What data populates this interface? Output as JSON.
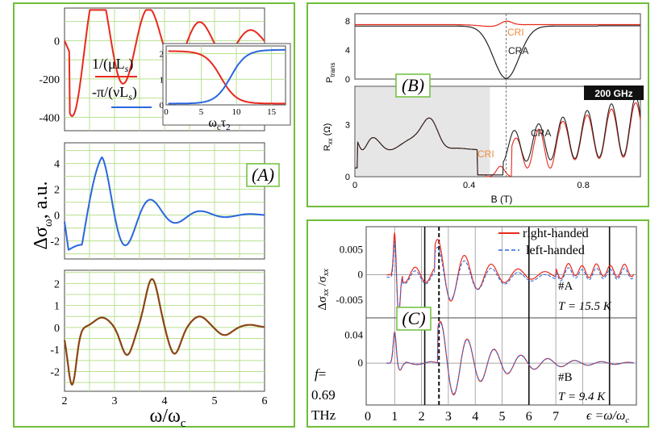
{
  "figure": {
    "accent_color": "#6fbf3a",
    "red": "#e8291c",
    "blue": "#2a66e0",
    "brown": "#8a4513",
    "black": "#222222"
  },
  "panel_a": {
    "label": "(A)",
    "ylabel": "Δσ",
    "ylabel_sub": "ω",
    "ylabel_suffix": ", a.u.",
    "xlabel": "ω/ω",
    "xlabel_sub": "c",
    "legend": [
      {
        "text": "1/(μL",
        "sub": "s",
        "close": ")",
        "color": "#e8291c"
      },
      {
        "text": "-π/(νL",
        "sub": "s",
        "close": ")",
        "color": "#2a66e0"
      }
    ],
    "inset_xlabel": "ω",
    "inset_xlabel_sub": "c",
    "inset_xlabel_tau": "τ",
    "inset_xlabel_tau_sub": "2"
  },
  "panel_b": {
    "label": "(B)",
    "badge": "200 GHz",
    "top_ylabel": "P",
    "top_ylabel_sub": "trans",
    "bottom_ylabel": "R",
    "bottom_ylabel_sub": "xx",
    "bottom_ylabel_unit": " (Ω)",
    "xlabel": "B (T)",
    "cri_label": "CRI",
    "cra_label": "CRA",
    "cri_label_2": "CRI",
    "cra_label_2": "CRA"
  },
  "panel_c": {
    "label": "(C)",
    "ylabel": "Δσ",
    "ylabel_sub": "xx",
    "ylabel_mid": " /σ",
    "ylabel_sub2": "xx",
    "legend": [
      "right-handed",
      "left-handed"
    ],
    "sample_a": "#A",
    "temp_a": "T = 15.5 K",
    "sample_b": "#B",
    "temp_b": "T = 9.4 K",
    "freq_line1": "f =",
    "freq_line2": "0.69",
    "freq_line3": "THz",
    "xlabel": "ϵ =ω/ω",
    "xlabel_sub": "c"
  },
  "chart_data": [
    {
      "id": "A-top",
      "type": "line",
      "x": [
        2,
        6
      ],
      "y_range": [
        -470,
        170
      ],
      "yticks": [
        0,
        -200,
        -400
      ],
      "yticks_labels": [
        "0",
        "-200",
        "-400"
      ],
      "series": [
        {
          "name": "red oscillation",
          "color": "#e8291c"
        }
      ]
    },
    {
      "id": "A-inset",
      "type": "line",
      "x_range": [
        0,
        17
      ],
      "y_range": [
        0,
        2.3
      ],
      "xticks": [
        0,
        5,
        10,
        15
      ],
      "xticks_labels": [
        "0",
        "5",
        "10",
        "15"
      ],
      "yticks": [
        0,
        1,
        2
      ],
      "yticks_labels": [
        "0",
        "1",
        "2"
      ],
      "series": [
        {
          "name": "1/(μLs)",
          "color": "#e8291c"
        },
        {
          "name": "-π/(νLs)",
          "color": "#2a66e0"
        }
      ]
    },
    {
      "id": "A-mid",
      "type": "line",
      "x_range": [
        2,
        6
      ],
      "y_range": [
        -3.4,
        5.6
      ],
      "yticks": [
        4,
        2,
        0,
        -2
      ],
      "yticks_labels": [
        "4",
        "2",
        "0",
        "-2"
      ],
      "series": [
        {
          "name": "blue",
          "color": "#2a66e0"
        }
      ]
    },
    {
      "id": "A-bottom",
      "type": "line",
      "x_range": [
        2,
        6
      ],
      "y_range": [
        -2.9,
        2.6
      ],
      "xticks": [
        2,
        3,
        4,
        5,
        6
      ],
      "xticks_labels": [
        "2",
        "3",
        "4",
        "5",
        "6"
      ],
      "yticks": [
        2,
        1,
        0,
        -1,
        -2
      ],
      "yticks_labels": [
        "2",
        "1",
        "0",
        "-1",
        "-2"
      ],
      "series": [
        {
          "name": "brown",
          "color": "#8a4513"
        }
      ]
    },
    {
      "id": "B-top",
      "type": "line",
      "x_range": [
        0,
        1.0
      ],
      "y_range": [
        0,
        9
      ],
      "yticks": [
        8,
        4,
        0
      ],
      "yticks_labels": [
        "8",
        "4",
        "0"
      ],
      "series": [
        {
          "name": "CRI",
          "color": "#e8291c"
        },
        {
          "name": "CRA",
          "color": "#222222"
        }
      ]
    },
    {
      "id": "B-bottom",
      "type": "line",
      "x_range": [
        0,
        1.0
      ],
      "y_range": [
        0,
        5.2
      ],
      "xticks": [
        0,
        0.4,
        0.8
      ],
      "xticks_labels": [
        "0",
        "0.4",
        "0.8"
      ],
      "yticks": [
        3,
        0
      ],
      "yticks_labels": [
        "3",
        "0"
      ],
      "series": [
        {
          "name": "CRI",
          "color": "#e8291c"
        },
        {
          "name": "CRA",
          "color": "#222222"
        }
      ]
    },
    {
      "id": "C-top",
      "type": "line",
      "x_range": [
        0,
        10
      ],
      "y_range": [
        -0.0085,
        0.0095
      ],
      "yticks": [
        0.005,
        0,
        -0.005
      ],
      "yticks_labels": [
        "0.005",
        "0",
        "-0.005"
      ],
      "series": [
        {
          "name": "right-handed",
          "color": "#e8291c"
        },
        {
          "name": "left-handed",
          "color": "#2a66e0"
        }
      ]
    },
    {
      "id": "C-bottom",
      "type": "line",
      "x_range": [
        0,
        10
      ],
      "y_range": [
        -0.06,
        0.065
      ],
      "xticks": [
        0,
        1,
        2,
        3,
        4,
        5,
        6,
        7
      ],
      "xticks_labels": [
        "0",
        "1",
        "2",
        "3",
        "4",
        "5",
        "6",
        "7"
      ],
      "yticks": [
        0.04,
        0
      ],
      "yticks_labels": [
        "0.04",
        "0"
      ],
      "series": [
        {
          "name": "right-handed",
          "color": "#e8291c"
        },
        {
          "name": "left-handed",
          "color": "#2a66e0"
        }
      ]
    }
  ]
}
